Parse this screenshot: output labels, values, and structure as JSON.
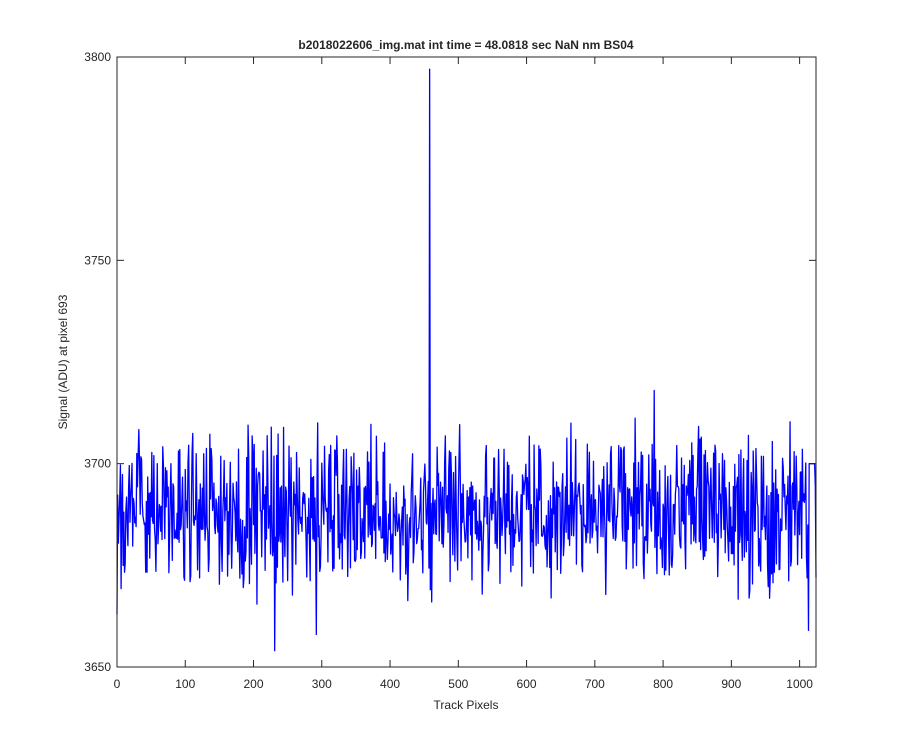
{
  "chart_data": {
    "type": "line",
    "title": "b2018022606_img.mat int time = 48.0818 sec  NaN nm BS04",
    "xlabel": "Track Pixels",
    "ylabel": "Signal (ADU) at pixel 693",
    "xlim": [
      0,
      1024
    ],
    "ylim": [
      3650,
      3800
    ],
    "xticks": [
      0,
      100,
      200,
      300,
      400,
      500,
      600,
      700,
      800,
      900,
      1000
    ],
    "yticks": [
      3650,
      3700,
      3750,
      3800
    ],
    "xtick_labels": [
      "0",
      "100",
      "200",
      "300",
      "400",
      "500",
      "600",
      "700",
      "800",
      "900",
      "1000"
    ],
    "ytick_labels": [
      "3650",
      "3700",
      "3750",
      "3800"
    ],
    "grid": false,
    "series": [
      {
        "color": "#0000ff",
        "baseline": 3688,
        "noise_range": [
          3660,
          3718
        ],
        "features": [
          {
            "x": 0,
            "y": 3663
          },
          {
            "x": 231,
            "y": 3654
          },
          {
            "x": 292,
            "y": 3658
          },
          {
            "x": 458,
            "y": 3797
          },
          {
            "x": 459,
            "y": 3669
          },
          {
            "x": 461,
            "y": 3666
          },
          {
            "x": 787,
            "y": 3718
          },
          {
            "x": 1013,
            "y": 3659
          },
          {
            "x": 1014,
            "y": 3700
          },
          {
            "x": 1022,
            "y": 3700
          },
          {
            "x": 1024,
            "y": 3672
          }
        ]
      }
    ]
  }
}
